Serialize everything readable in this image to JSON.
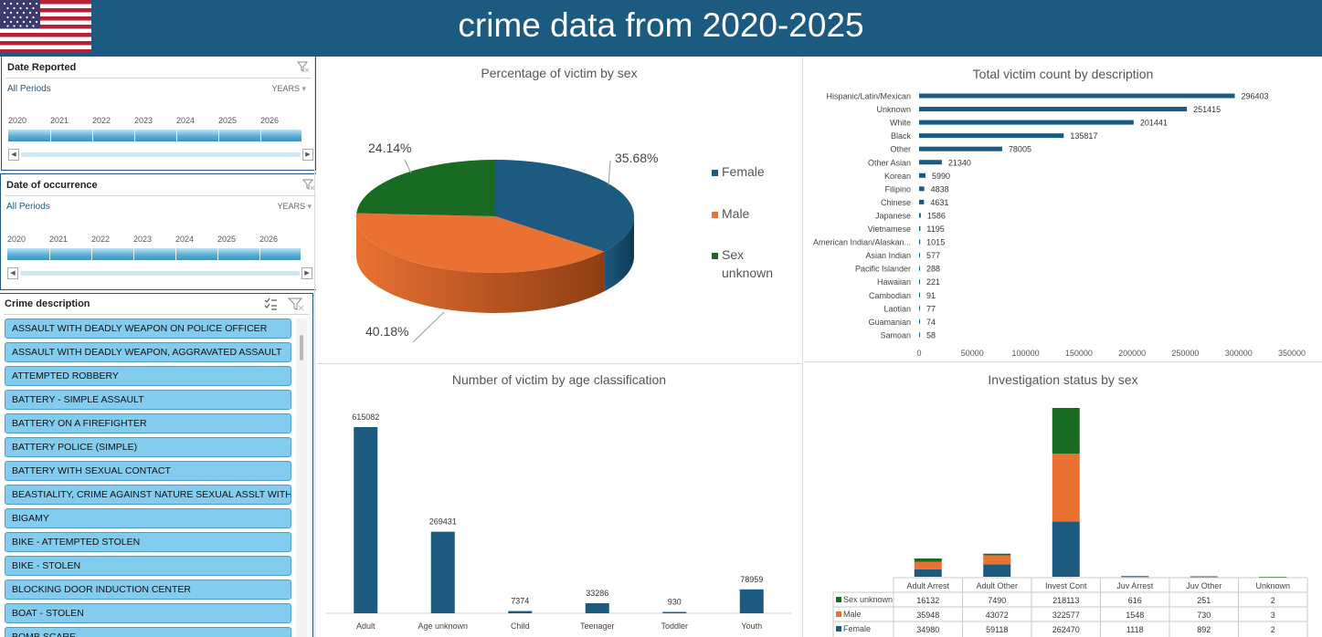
{
  "header": {
    "title": "crime data from 2020-2025"
  },
  "slicer_reported": {
    "title": "Date Reported",
    "period": "All Periods",
    "level": "YEARS",
    "years": [
      "2020",
      "2021",
      "2022",
      "2023",
      "2024",
      "2025",
      "2026"
    ]
  },
  "slicer_occurrence": {
    "title": "Date of occurrence",
    "period": "All Periods",
    "level": "YEARS",
    "years": [
      "2020",
      "2021",
      "2022",
      "2023",
      "2024",
      "2025",
      "2026"
    ]
  },
  "crime_description": {
    "title": "Crime description",
    "items": [
      "ASSAULT WITH DEADLY WEAPON ON POLICE OFFICER",
      "ASSAULT WITH DEADLY WEAPON, AGGRAVATED ASSAULT",
      "ATTEMPTED ROBBERY",
      "BATTERY - SIMPLE ASSAULT",
      "BATTERY ON A FIREFIGHTER",
      "BATTERY POLICE (SIMPLE)",
      "BATTERY WITH SEXUAL CONTACT",
      "BEASTIALITY, CRIME AGAINST NATURE SEXUAL ASSLT WITH A...",
      "BIGAMY",
      "BIKE - ATTEMPTED STOLEN",
      "BIKE - STOLEN",
      "BLOCKING DOOR INDUCTION CENTER",
      "BOAT - STOLEN",
      "BOMB SCARE"
    ]
  },
  "colors": {
    "header": "#1c5a80",
    "female": "#1c5a80",
    "male": "#e97132",
    "sex_unknown": "#196b24",
    "slicer_item": "#82cdef"
  },
  "chart_data": [
    {
      "type": "pie",
      "title": "Percentage of victim by sex",
      "categories": [
        "Female",
        "Male",
        "Sex unknown"
      ],
      "values": [
        35.68,
        40.18,
        24.14
      ],
      "labels": [
        "35.68%",
        "40.18%",
        "24.14%"
      ],
      "legend": "right"
    },
    {
      "type": "bar",
      "orientation": "horizontal",
      "title": "Total victim count by description",
      "categories": [
        "Hispanic/Latin/Mexican",
        "Unknown",
        "White",
        "Black",
        "Other",
        "Other Asian",
        "Korean",
        "Filipino",
        "Chinese",
        "Japanese",
        "Vietnamese",
        "American Indian/Alaskan...",
        "Asian Indian",
        "Pacific Islander",
        "Hawaiian",
        "Cambodian",
        "Laotian",
        "Guamanian",
        "Samoan"
      ],
      "values": [
        296403,
        251415,
        201441,
        135817,
        78005,
        21340,
        5990,
        4838,
        4631,
        1586,
        1195,
        1015,
        577,
        288,
        221,
        91,
        77,
        74,
        58
      ],
      "xlim": [
        0,
        350000
      ],
      "xticks": [
        "0",
        "50000",
        "100000",
        "150000",
        "200000",
        "250000",
        "300000",
        "350000"
      ]
    },
    {
      "type": "bar",
      "title": "Number of victim by age classification",
      "categories": [
        "Adult",
        "Age unknown",
        "Child",
        "Teenager",
        "Toddler",
        "Youth"
      ],
      "values": [
        615082,
        269431,
        7374,
        33286,
        930,
        78959
      ]
    },
    {
      "type": "table",
      "chart": "stacked bar",
      "title": "Investigation status by sex",
      "categories": [
        "Adult Arrest",
        "Adult Other",
        "Invest Cont",
        "Juv Arrest",
        "Juv Other",
        "Unknown"
      ],
      "series": [
        {
          "name": "Sex unknown",
          "values": [
            16132,
            7490,
            218113,
            616,
            251,
            2
          ]
        },
        {
          "name": "Male",
          "values": [
            35948,
            43072,
            322577,
            1548,
            730,
            3
          ]
        },
        {
          "name": "Female",
          "values": [
            34980,
            59118,
            262470,
            1118,
            892,
            2
          ]
        }
      ]
    }
  ]
}
